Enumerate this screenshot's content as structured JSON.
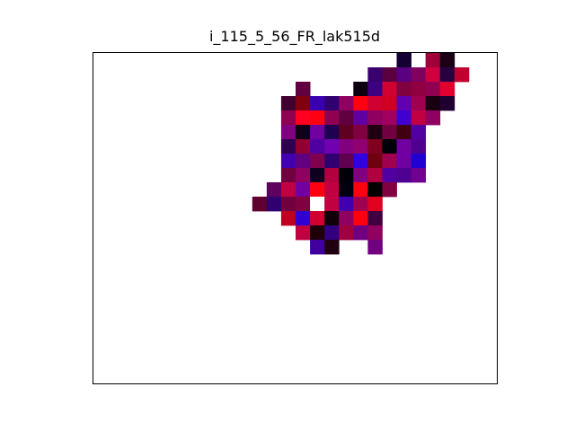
{
  "chart_data": {
    "type": "heatmap",
    "title": "i_115_5_56_FR_lak515d",
    "xlabel": "",
    "ylabel": "",
    "grid": false,
    "axes_ticks": "hidden",
    "n_cols": 28,
    "n_rows": 23,
    "cells": [
      {
        "col": 21,
        "row": 0,
        "color": "#160033"
      },
      {
        "col": 23,
        "row": 0,
        "color": "#a0003a"
      },
      {
        "col": 24,
        "row": 0,
        "color": "#1c0016"
      },
      {
        "col": 19,
        "row": 1,
        "color": "#3a0070"
      },
      {
        "col": 20,
        "row": 1,
        "color": "#5a0040"
      },
      {
        "col": 21,
        "row": 1,
        "color": "#5a0080"
      },
      {
        "col": 22,
        "row": 1,
        "color": "#800060"
      },
      {
        "col": 23,
        "row": 1,
        "color": "#d00040"
      },
      {
        "col": 24,
        "row": 1,
        "color": "#280040"
      },
      {
        "col": 25,
        "row": 1,
        "color": "#c00030"
      },
      {
        "col": 14,
        "row": 2,
        "color": "#600040"
      },
      {
        "col": 18,
        "row": 2,
        "color": "#0c0010"
      },
      {
        "col": 19,
        "row": 2,
        "color": "#3c0080"
      },
      {
        "col": 20,
        "row": 2,
        "color": "#d00030"
      },
      {
        "col": 21,
        "row": 2,
        "color": "#800040"
      },
      {
        "col": 22,
        "row": 2,
        "color": "#900040"
      },
      {
        "col": 23,
        "row": 2,
        "color": "#900050"
      },
      {
        "col": 24,
        "row": 2,
        "color": "#e00030"
      },
      {
        "col": 13,
        "row": 3,
        "color": "#400030"
      },
      {
        "col": 14,
        "row": 3,
        "color": "#800010"
      },
      {
        "col": 15,
        "row": 3,
        "color": "#3a00b0"
      },
      {
        "col": 16,
        "row": 3,
        "color": "#300070"
      },
      {
        "col": 17,
        "row": 3,
        "color": "#900060"
      },
      {
        "col": 18,
        "row": 3,
        "color": "#ff0010"
      },
      {
        "col": 19,
        "row": 3,
        "color": "#d00030"
      },
      {
        "col": 20,
        "row": 3,
        "color": "#d00020"
      },
      {
        "col": 21,
        "row": 3,
        "color": "#6000b0"
      },
      {
        "col": 22,
        "row": 3,
        "color": "#a00050"
      },
      {
        "col": 23,
        "row": 3,
        "color": "#180010"
      },
      {
        "col": 24,
        "row": 3,
        "color": "#200030"
      },
      {
        "col": 13,
        "row": 4,
        "color": "#900050"
      },
      {
        "col": 14,
        "row": 4,
        "color": "#ff0020"
      },
      {
        "col": 15,
        "row": 4,
        "color": "#ff0010"
      },
      {
        "col": 16,
        "row": 4,
        "color": "#900050"
      },
      {
        "col": 17,
        "row": 4,
        "color": "#600040"
      },
      {
        "col": 18,
        "row": 4,
        "color": "#6000a0"
      },
      {
        "col": 19,
        "row": 4,
        "color": "#900060"
      },
      {
        "col": 20,
        "row": 4,
        "color": "#a00060"
      },
      {
        "col": 21,
        "row": 4,
        "color": "#4000d0"
      },
      {
        "col": 22,
        "row": 4,
        "color": "#c00040"
      },
      {
        "col": 23,
        "row": 4,
        "color": "#900060"
      },
      {
        "col": 13,
        "row": 5,
        "color": "#800080"
      },
      {
        "col": 14,
        "row": 5,
        "color": "#100018"
      },
      {
        "col": 15,
        "row": 5,
        "color": "#7000a0"
      },
      {
        "col": 16,
        "row": 5,
        "color": "#200050"
      },
      {
        "col": 17,
        "row": 5,
        "color": "#600020"
      },
      {
        "col": 18,
        "row": 5,
        "color": "#800040"
      },
      {
        "col": 19,
        "row": 5,
        "color": "#200010"
      },
      {
        "col": 20,
        "row": 5,
        "color": "#700040"
      },
      {
        "col": 21,
        "row": 5,
        "color": "#400010"
      },
      {
        "col": 22,
        "row": 5,
        "color": "#5000a0"
      },
      {
        "col": 13,
        "row": 6,
        "color": "#300050"
      },
      {
        "col": 14,
        "row": 6,
        "color": "#900030"
      },
      {
        "col": 15,
        "row": 6,
        "color": "#5000a0"
      },
      {
        "col": 16,
        "row": 6,
        "color": "#7000b0"
      },
      {
        "col": 17,
        "row": 6,
        "color": "#800080"
      },
      {
        "col": 18,
        "row": 6,
        "color": "#900070"
      },
      {
        "col": 19,
        "row": 6,
        "color": "#800020"
      },
      {
        "col": 20,
        "row": 6,
        "color": "#000008"
      },
      {
        "col": 21,
        "row": 6,
        "color": "#7000a0"
      },
      {
        "col": 22,
        "row": 6,
        "color": "#500090"
      },
      {
        "col": 13,
        "row": 7,
        "color": "#4000b0"
      },
      {
        "col": 14,
        "row": 7,
        "color": "#600080"
      },
      {
        "col": 15,
        "row": 7,
        "color": "#800050"
      },
      {
        "col": 16,
        "row": 7,
        "color": "#300070"
      },
      {
        "col": 17,
        "row": 7,
        "color": "#600050"
      },
      {
        "col": 18,
        "row": 7,
        "color": "#3000e0"
      },
      {
        "col": 19,
        "row": 7,
        "color": "#700010"
      },
      {
        "col": 20,
        "row": 7,
        "color": "#a00050"
      },
      {
        "col": 21,
        "row": 7,
        "color": "#7000a0"
      },
      {
        "col": 22,
        "row": 7,
        "color": "#2000d0"
      },
      {
        "col": 13,
        "row": 8,
        "color": "#700040"
      },
      {
        "col": 14,
        "row": 8,
        "color": "#900060"
      },
      {
        "col": 15,
        "row": 8,
        "color": "#100020"
      },
      {
        "col": 16,
        "row": 8,
        "color": "#b00040"
      },
      {
        "col": 17,
        "row": 8,
        "color": "#000008"
      },
      {
        "col": 18,
        "row": 8,
        "color": "#800080"
      },
      {
        "col": 19,
        "row": 8,
        "color": "#b00040"
      },
      {
        "col": 20,
        "row": 8,
        "color": "#5000a0"
      },
      {
        "col": 21,
        "row": 8,
        "color": "#500090"
      },
      {
        "col": 22,
        "row": 8,
        "color": "#700090"
      },
      {
        "col": 12,
        "row": 9,
        "color": "#600060"
      },
      {
        "col": 13,
        "row": 9,
        "color": "#c00040"
      },
      {
        "col": 14,
        "row": 9,
        "color": "#7000a0"
      },
      {
        "col": 15,
        "row": 9,
        "color": "#ff0010"
      },
      {
        "col": 16,
        "row": 9,
        "color": "#c00040"
      },
      {
        "col": 17,
        "row": 9,
        "color": "#000010"
      },
      {
        "col": 18,
        "row": 9,
        "color": "#ff0010"
      },
      {
        "col": 19,
        "row": 9,
        "color": "#000000"
      },
      {
        "col": 20,
        "row": 9,
        "color": "#800040"
      },
      {
        "col": 11,
        "row": 10,
        "color": "#600030"
      },
      {
        "col": 12,
        "row": 10,
        "color": "#300070"
      },
      {
        "col": 13,
        "row": 10,
        "color": "#700040"
      },
      {
        "col": 14,
        "row": 10,
        "color": "#800040"
      },
      {
        "col": 15,
        "row": 10,
        "color": "#ffffff"
      },
      {
        "col": 16,
        "row": 10,
        "color": "#c00040"
      },
      {
        "col": 17,
        "row": 10,
        "color": "#4000b0"
      },
      {
        "col": 18,
        "row": 10,
        "color": "#a00050"
      },
      {
        "col": 19,
        "row": 10,
        "color": "#e00020"
      },
      {
        "col": 13,
        "row": 11,
        "color": "#c00020"
      },
      {
        "col": 14,
        "row": 11,
        "color": "#3000d0"
      },
      {
        "col": 15,
        "row": 11,
        "color": "#d00030"
      },
      {
        "col": 16,
        "row": 11,
        "color": "#100008"
      },
      {
        "col": 17,
        "row": 11,
        "color": "#900060"
      },
      {
        "col": 18,
        "row": 11,
        "color": "#ff0010"
      },
      {
        "col": 19,
        "row": 11,
        "color": "#400040"
      },
      {
        "col": 14,
        "row": 12,
        "color": "#c00040"
      },
      {
        "col": 15,
        "row": 12,
        "color": "#200008"
      },
      {
        "col": 16,
        "row": 12,
        "color": "#300080"
      },
      {
        "col": 17,
        "row": 12,
        "color": "#a00040"
      },
      {
        "col": 18,
        "row": 12,
        "color": "#700080"
      },
      {
        "col": 19,
        "row": 12,
        "color": "#900060"
      },
      {
        "col": 15,
        "row": 13,
        "color": "#4000a0"
      },
      {
        "col": 16,
        "row": 13,
        "color": "#200010"
      },
      {
        "col": 19,
        "row": 13,
        "color": "#700080"
      }
    ]
  }
}
